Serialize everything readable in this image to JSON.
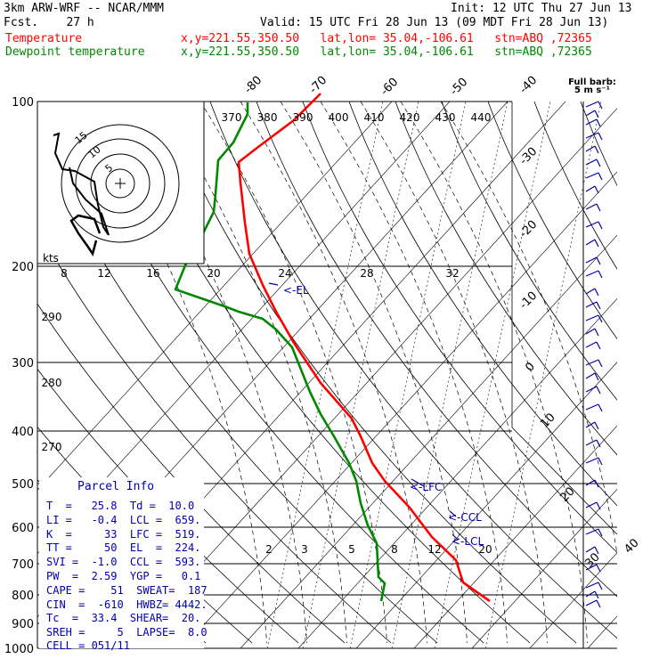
{
  "header": {
    "model": "3km ARW-WRF -- NCAR/MMM",
    "init": "Init: 12 UTC Thu 27 Jun 13",
    "fcst": "Fcst.    27 h",
    "valid": "Valid: 15 UTC Fri 28 Jun 13 (09 MDT Fri 28 Jun 13)",
    "temperature_label": "Temperature",
    "temperature_info": "x,y=221.55,350.50   lat,lon= 35.04,-106.61   stn=ABQ ,72365",
    "dewpoint_label": "Dewpoint temperature",
    "dewpoint_info": "x,y=221.55,350.50   lat,lon= 35.04,-106.61   stn=ABQ ,72365"
  },
  "colors": {
    "temperature": "#ff0000",
    "dewpoint": "#008800",
    "text": "#000000",
    "parcel": "#0000aa",
    "wind": "#0000aa"
  },
  "chart_data": {
    "type": "line",
    "pressure_ticks": [
      "100",
      "200",
      "300",
      "400",
      "500",
      "600",
      "700",
      "800",
      "900",
      "1000"
    ],
    "pressure_levels": [
      100,
      200,
      300,
      400,
      500,
      600,
      700,
      800,
      900,
      1000
    ],
    "isotherm_labels": [
      "-80",
      "-70",
      "-60",
      "-50",
      "-40",
      "-30",
      "-20",
      "-10",
      "0",
      "10",
      "20",
      "30",
      "40"
    ],
    "theta_labels": [
      "370",
      "380",
      "390",
      "400",
      "410",
      "420",
      "430",
      "440"
    ],
    "theta_labels_lower": [
      "290",
      "280",
      "270"
    ],
    "mixing_ratio_labels": [
      "2",
      "3",
      "5",
      "8",
      "12",
      "20"
    ],
    "hodograph": {
      "unit": "kts",
      "speed_labels": [
        "8",
        "12",
        "16",
        "20",
        "24",
        "28",
        "32"
      ],
      "ring_labels": [
        "5",
        "10",
        "15"
      ]
    },
    "wind_barb_title": [
      "Full barb:",
      "5 m s⁻¹"
    ],
    "series": [
      {
        "name": "Temperature",
        "color": "#ff0000",
        "points": [
          [
            550,
            675
          ],
          [
            520,
            654
          ],
          [
            512,
            629
          ],
          [
            485,
            603
          ],
          [
            460,
            570
          ],
          [
            432,
            540
          ],
          [
            418,
            520
          ],
          [
            405,
            490
          ],
          [
            395,
            470
          ],
          [
            360,
            430
          ],
          [
            330,
            385
          ],
          [
            310,
            350
          ],
          [
            295,
            320
          ],
          [
            280,
            285
          ],
          [
            275,
            250
          ],
          [
            270,
            205
          ],
          [
            268,
            182
          ],
          [
            290,
            165
          ],
          [
            330,
            135
          ],
          [
            360,
            105
          ]
        ]
      },
      {
        "name": "Dewpoint temperature",
        "color": "#008800",
        "points": [
          [
            428,
            675
          ],
          [
            432,
            655
          ],
          [
            425,
            648
          ],
          [
            423,
            610
          ],
          [
            413,
            590
          ],
          [
            405,
            565
          ],
          [
            400,
            540
          ],
          [
            392,
            520
          ],
          [
            375,
            490
          ],
          [
            360,
            465
          ],
          [
            348,
            440
          ],
          [
            328,
            390
          ],
          [
            310,
            370
          ],
          [
            295,
            358
          ],
          [
            268,
            350
          ],
          [
            255,
            345
          ],
          [
            197,
            325
          ],
          [
            208,
            298
          ],
          [
            228,
            262
          ],
          [
            240,
            238
          ],
          [
            242,
            218
          ],
          [
            245,
            180
          ],
          [
            262,
            160
          ],
          [
            278,
            128
          ],
          [
            278,
            115
          ]
        ]
      }
    ],
    "annotations": [
      "<-EL",
      "<-LFC",
      "<-CCL",
      "<-LCL"
    ]
  },
  "parcel_info": {
    "title": "Parcel Info",
    "rows": [
      "T  =   25.8  Td =  10.0",
      "LI =   -0.4  LCL =  659.",
      "K  =     33  LFC =  519.",
      "TT =     50  EL  =  224.",
      "SVI =  -1.0  CCL =  593.",
      "PW  =  2.59  YGP =   0.1",
      "CAPE =    51  SWEAT=  187",
      "CIN  =  -610  HWBZ= 4442.",
      "Tc  =  33.4  SHEAR=  20.",
      "SREH =     5  LAPSE=  8.0",
      "CELL = 051/11"
    ]
  }
}
